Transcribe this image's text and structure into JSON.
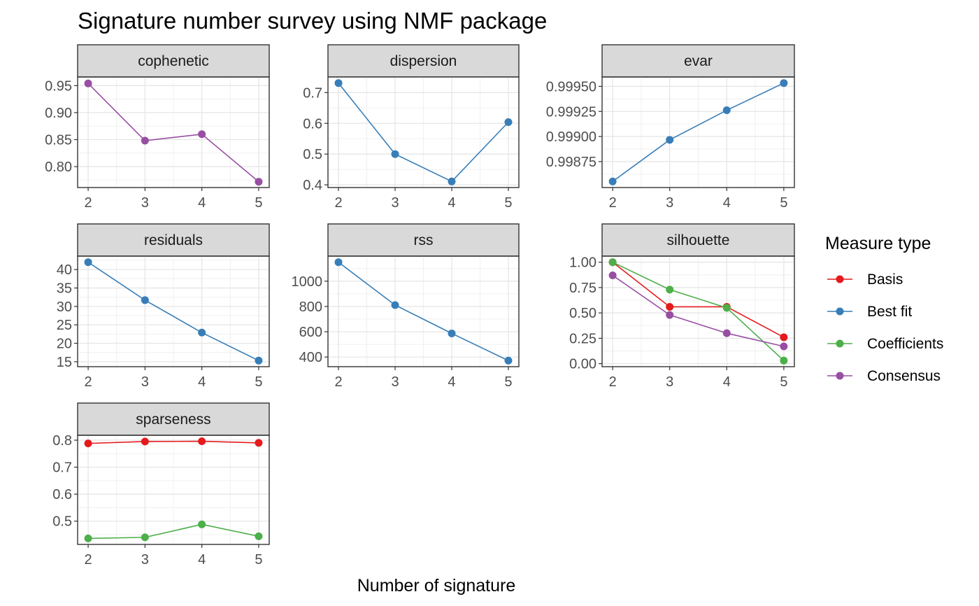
{
  "chart_data": {
    "type": "line",
    "title": "Signature number survey using NMF package",
    "xlabel": "Number of signature",
    "ylabel": "",
    "x": [
      2,
      3,
      4,
      5
    ],
    "legend": {
      "title": "Measure type",
      "position": "right",
      "entries": [
        {
          "name": "Basis",
          "color": "#E41A1C"
        },
        {
          "name": "Best fit",
          "color": "#377EB8"
        },
        {
          "name": "Coefficients",
          "color": "#4DAF4A"
        },
        {
          "name": "Consensus",
          "color": "#984EA3"
        }
      ]
    },
    "grid": true,
    "panels": [
      {
        "name": "cophenetic",
        "ylim": [
          0.7725,
          0.9547
        ],
        "yticks": [
          "0.80",
          "0.85",
          "0.90",
          "0.95"
        ],
        "series": [
          {
            "type": "Consensus",
            "values": [
              0.954,
              0.848,
              0.86,
              0.772
            ]
          }
        ]
      },
      {
        "name": "dispersion",
        "ylim": [
          0.411,
          0.731
        ],
        "yticks": [
          "0.4",
          "0.5",
          "0.6",
          "0.7"
        ],
        "series": [
          {
            "type": "Best fit",
            "values": [
              0.731,
              0.5,
              0.411,
              0.604
            ]
          }
        ]
      },
      {
        "name": "evar",
        "ylim": [
          0.998552,
          0.999533
        ],
        "yticks": [
          "0.99875",
          "0.99900",
          "0.99925",
          "0.99950"
        ],
        "series": [
          {
            "type": "Best fit",
            "values": [
              0.998552,
              0.998967,
              0.999262,
              0.999533
            ]
          }
        ]
      },
      {
        "name": "residuals",
        "ylim": [
          15.3,
          42.0
        ],
        "yticks": [
          "15",
          "20",
          "25",
          "30",
          "35",
          "40"
        ],
        "series": [
          {
            "type": "Best fit",
            "values": [
              42.0,
              31.7,
              22.9,
              15.3
            ]
          }
        ]
      },
      {
        "name": "rss",
        "ylim": [
          372,
          1150
        ],
        "yticks": [
          "400",
          "600",
          "800",
          "1000"
        ],
        "series": [
          {
            "type": "Best fit",
            "values": [
              1150,
              811,
              587,
              372
            ]
          }
        ]
      },
      {
        "name": "silhouette",
        "ylim": [
          0.03,
          1.0
        ],
        "yticks": [
          "0.00",
          "0.25",
          "0.50",
          "0.75",
          "1.00"
        ],
        "series": [
          {
            "type": "Basis",
            "values": [
              1.0,
              0.56,
              0.56,
              0.26
            ]
          },
          {
            "type": "Coefficients",
            "values": [
              1.0,
              0.73,
              0.55,
              0.03
            ]
          },
          {
            "type": "Consensus",
            "values": [
              0.87,
              0.48,
              0.3,
              0.17
            ]
          }
        ]
      },
      {
        "name": "sparseness",
        "ylim": [
          0.436,
          0.796
        ],
        "yticks": [
          "0.5",
          "0.6",
          "0.7",
          "0.8"
        ],
        "series": [
          {
            "type": "Basis",
            "values": [
              0.788,
              0.795,
              0.796,
              0.79
            ]
          },
          {
            "type": "Coefficients",
            "values": [
              0.436,
              0.44,
              0.488,
              0.444
            ]
          }
        ]
      }
    ]
  }
}
